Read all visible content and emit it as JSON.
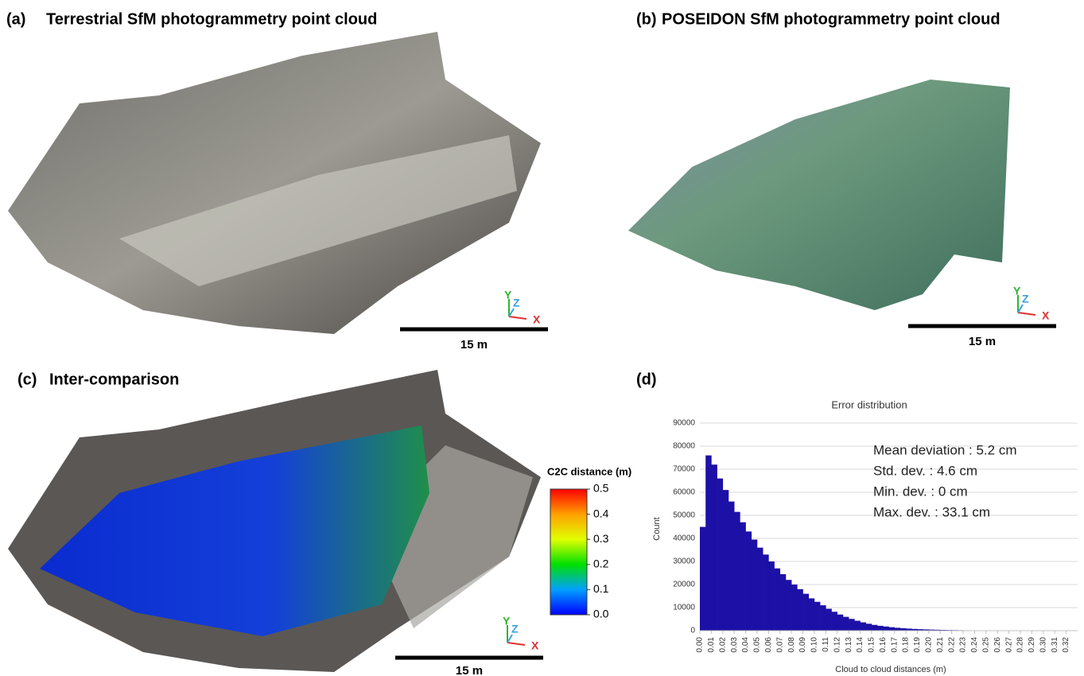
{
  "panels": [
    {
      "label": "(a)",
      "title": "Terrestrial SfM photogrammetry point cloud",
      "scale_bar": "15 m"
    },
    {
      "label": "(b)",
      "title": "POSEIDON SfM photogrammetry point cloud",
      "scale_bar": "15 m"
    },
    {
      "label": "(c)",
      "title": "Inter-comparison",
      "scale_bar": "15 m"
    }
  ],
  "gizmo": {
    "x": "X",
    "y": "Y",
    "z": "Z"
  },
  "colorbar": {
    "title": "C2C distance (m)",
    "lim": [
      0,
      0.5
    ],
    "ticks": [
      0.5,
      0.4,
      0.3,
      0.2,
      0.1,
      {
        "value": 0,
        "label": "0.0"
      }
    ]
  },
  "chart_data": {
    "type": "histogram",
    "label": "(d)",
    "title": "Error distribution",
    "x_label": "Cloud to cloud distances (m)",
    "y_label": "Count",
    "color": "#1c10a6",
    "annotations": [
      "Mean deviation : 5.2 cm",
      "Std. dev. : 4.6 cm",
      "Min. dev. : 0 cm",
      "Max. dev. : 33.1 cm"
    ],
    "bins": [
      0,
      0.005,
      0.01,
      0.015,
      0.02,
      0.025,
      0.03,
      0.035,
      0.04,
      0.045,
      0.05,
      0.055,
      0.06,
      0.065,
      0.07,
      0.075,
      0.08,
      0.085,
      0.09,
      0.095,
      0.1,
      0.105,
      0.11,
      0.115,
      0.12,
      0.125,
      0.13,
      0.135,
      0.14,
      0.145,
      0.15,
      0.155,
      0.16,
      0.165,
      0.17,
      0.175,
      0.18,
      0.185,
      0.19,
      0.195,
      0.2,
      0.205,
      0.21,
      0.215,
      0.22,
      0.225,
      0.23,
      0.235,
      0.24,
      0.245,
      0.25,
      0.255,
      0.26,
      0.265,
      0.27,
      0.275,
      0.28,
      0.285,
      0.29,
      0.295,
      0.3,
      0.305,
      0.31,
      0.315,
      0.32,
      0.325,
      0.33
    ],
    "counts": [
      45000,
      76000,
      72000,
      66000,
      61000,
      56000,
      51500,
      47000,
      43000,
      39500,
      36000,
      33000,
      30000,
      27000,
      24500,
      22000,
      20000,
      18000,
      16000,
      14000,
      12500,
      11000,
      9500,
      8200,
      7000,
      6000,
      5100,
      4300,
      3600,
      3000,
      2500,
      2100,
      1800,
      1500,
      1250,
      1050,
      900,
      750,
      650,
      550,
      470,
      400,
      340,
      290,
      250,
      210,
      180,
      150,
      130,
      110,
      90,
      75,
      60,
      50,
      40,
      30,
      25,
      20,
      15,
      12,
      10,
      8,
      6,
      4,
      3,
      2
    ],
    "xlim": [
      0,
      0.33
    ],
    "ylim": [
      0,
      90000
    ],
    "xticks": [
      {
        "value": 0,
        "label": "0.00"
      },
      {
        "value": 0.01,
        "label": "0.01"
      },
      {
        "value": 0.02,
        "label": "0.02"
      },
      {
        "value": 0.03,
        "label": "0.03"
      },
      {
        "value": 0.04,
        "label": "0.04"
      },
      {
        "value": 0.05,
        "label": "0.05"
      },
      {
        "value": 0.06,
        "label": "0.06"
      },
      {
        "value": 0.07,
        "label": "0.07"
      },
      {
        "value": 0.08,
        "label": "0.08"
      },
      {
        "value": 0.09,
        "label": "0.09"
      },
      {
        "value": 0.1,
        "label": "0.10"
      },
      {
        "value": 0.11,
        "label": "0.11"
      },
      {
        "value": 0.12,
        "label": "0.12"
      },
      {
        "value": 0.13,
        "label": "0.13"
      },
      {
        "value": 0.14,
        "label": "0.14"
      },
      {
        "value": 0.15,
        "label": "0.15"
      },
      {
        "value": 0.16,
        "label": "0.16"
      },
      {
        "value": 0.17,
        "label": "0.17"
      },
      {
        "value": 0.18,
        "label": "0.18"
      },
      {
        "value": 0.19,
        "label": "0.19"
      },
      {
        "value": 0.2,
        "label": "0.20"
      },
      {
        "value": 0.21,
        "label": "0.21"
      },
      {
        "value": 0.22,
        "label": "0.22"
      },
      {
        "value": 0.23,
        "label": "0.23"
      },
      {
        "value": 0.24,
        "label": "0.24"
      },
      {
        "value": 0.25,
        "label": "0.25"
      },
      {
        "value": 0.26,
        "label": "0.26"
      },
      {
        "value": 0.27,
        "label": "0.27"
      },
      {
        "value": 0.28,
        "label": "0.28"
      },
      {
        "value": 0.29,
        "label": "0.29"
      },
      {
        "value": 0.3,
        "label": "0.30"
      },
      {
        "value": 0.31,
        "label": "0.31"
      },
      {
        "value": 0.32,
        "label": "0.32"
      }
    ],
    "yticks": [
      0,
      10000,
      20000,
      30000,
      40000,
      50000,
      60000,
      70000,
      80000,
      90000
    ],
    "grid": true
  }
}
